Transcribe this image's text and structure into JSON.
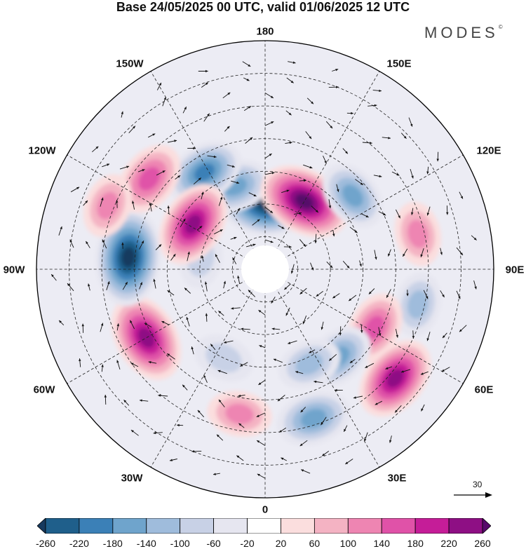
{
  "header": {
    "title": "Base 24/05/2025 00 UTC, valid 01/06/2025 12 UTC",
    "brand": "MODES",
    "brand_mark": "©"
  },
  "map": {
    "projection": "north-polar-stereographic",
    "longitude_labels": [
      "180",
      "150E",
      "120E",
      "90E",
      "60E",
      "30E",
      "0",
      "30W",
      "60W",
      "90W",
      "120W",
      "150W"
    ],
    "anomaly_centers": [
      {
        "lon": 178,
        "lat": 70,
        "value": -240
      },
      {
        "lon": 200,
        "lat": 63,
        "value": -120
      },
      {
        "lon": 212,
        "lat": 55,
        "value": -160
      },
      {
        "lon": 150,
        "lat": 66,
        "value": 240
      },
      {
        "lon": 130,
        "lat": 55,
        "value": -120
      },
      {
        "lon": 103,
        "lat": 42,
        "value": 80
      },
      {
        "lon": 77,
        "lat": 42,
        "value": -80
      },
      {
        "lon": 62,
        "lat": 52,
        "value": 120
      },
      {
        "lon": 50,
        "lat": 38,
        "value": 200
      },
      {
        "lon": 40,
        "lat": 55,
        "value": -120
      },
      {
        "lon": 25,
        "lat": 58,
        "value": -80
      },
      {
        "lon": 18,
        "lat": 42,
        "value": -140
      },
      {
        "lon": 350,
        "lat": 45,
        "value": 80
      },
      {
        "lon": 335,
        "lat": 60,
        "value": -60
      },
      {
        "lon": 300,
        "lat": 48,
        "value": 220
      },
      {
        "lon": 265,
        "lat": 48,
        "value": -260
      },
      {
        "lon": 260,
        "lat": 70,
        "value": -60
      },
      {
        "lon": 238,
        "lat": 64,
        "value": 200
      },
      {
        "lon": 232,
        "lat": 45,
        "value": 140
      },
      {
        "lon": 248,
        "lat": 38,
        "value": 80
      }
    ]
  },
  "reference_vector": {
    "value": "30"
  },
  "colorbar": {
    "colors": [
      "#173a5e",
      "#1f5f8b",
      "#3b80b7",
      "#6fa4cc",
      "#9fbcdc",
      "#c8d1e6",
      "#e6e6f0",
      "#ffffff",
      "#fbdede",
      "#f4b3c3",
      "#ee85b2",
      "#e052a8",
      "#c51d98",
      "#8e0f84",
      "#57096b"
    ],
    "tick_labels": [
      "-260",
      "-220",
      "-180",
      "-140",
      "-100",
      "-60",
      "-20",
      "20",
      "60",
      "100",
      "140",
      "180",
      "220",
      "260"
    ]
  }
}
